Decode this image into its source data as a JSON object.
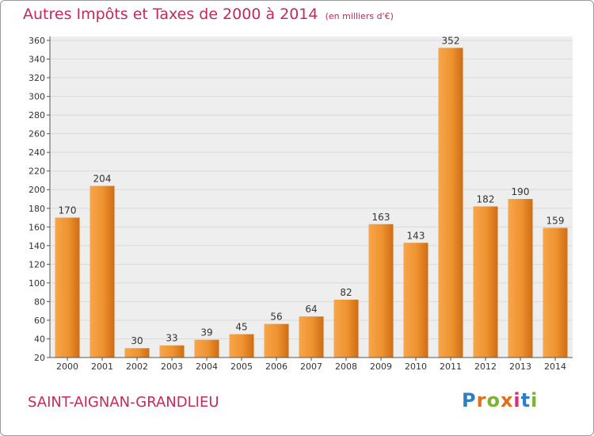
{
  "page": {
    "title": "Autres Impôts et Taxes de 2000 à 2014",
    "subtitle": "(en milliers d'€)",
    "place": "SAINT-AIGNAN-GRANDLIEU",
    "logo_text": "Proxiti"
  },
  "colors": {
    "title": "#c8285a",
    "bar_light": "#f7a64c",
    "bar_dark": "#cf6c14",
    "grid": "#d9d9d9",
    "plot_background": "#eeeeee"
  },
  "chart_data": {
    "type": "bar",
    "title": "Autres Impôts et Taxes de 2000 à 2014",
    "subtitle": "(en milliers d'€)",
    "categories": [
      "2000",
      "2001",
      "2002",
      "2003",
      "2004",
      "2005",
      "2006",
      "2007",
      "2008",
      "2009",
      "2010",
      "2011",
      "2012",
      "2013",
      "2014"
    ],
    "values": [
      170,
      204,
      30,
      33,
      39,
      45,
      56,
      64,
      82,
      163,
      143,
      352,
      182,
      190,
      159
    ],
    "ylim": [
      20,
      360
    ],
    "yticks": [
      20,
      40,
      60,
      80,
      100,
      120,
      140,
      160,
      180,
      200,
      220,
      240,
      260,
      280,
      300,
      320,
      340,
      360
    ],
    "grid": true
  }
}
